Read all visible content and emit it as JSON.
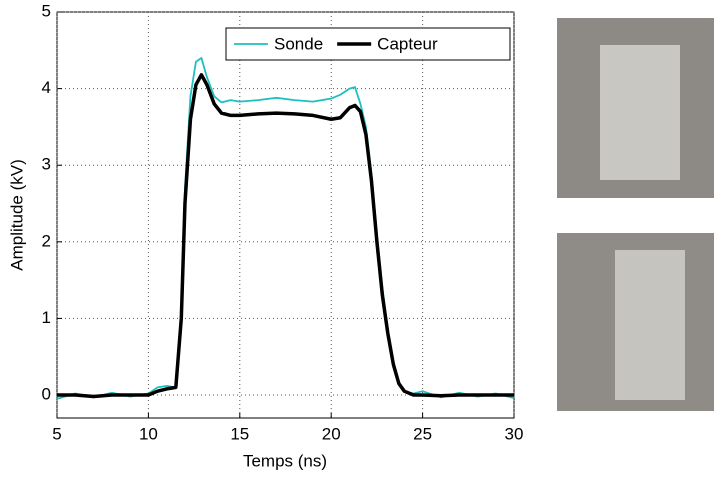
{
  "chart_data": {
    "type": "line",
    "xlabel": "Temps (ns)",
    "ylabel": "Amplitude (kV)",
    "x": [
      5,
      6,
      7,
      8,
      9,
      10,
      10.5,
      11,
      11.5,
      11.8,
      12,
      12.3,
      12.6,
      12.9,
      13.2,
      13.6,
      14,
      14.5,
      15,
      16,
      17,
      18,
      19,
      20,
      20.5,
      21,
      21.3,
      21.6,
      21.9,
      22.2,
      22.5,
      22.8,
      23.1,
      23.4,
      23.7,
      24,
      24.5,
      25,
      26,
      27,
      28,
      29,
      30
    ],
    "series": [
      {
        "name": "Sonde",
        "color": "#1fbfbf",
        "values": [
          -0.05,
          0.02,
          -0.03,
          0.03,
          -0.02,
          0.02,
          0.1,
          0.12,
          0.1,
          1.1,
          2.7,
          3.9,
          4.35,
          4.4,
          4.15,
          3.9,
          3.82,
          3.85,
          3.83,
          3.85,
          3.88,
          3.85,
          3.83,
          3.87,
          3.92,
          4.0,
          4.02,
          3.8,
          3.5,
          2.9,
          2.1,
          1.4,
          0.85,
          0.45,
          0.15,
          0.05,
          0.02,
          0.05,
          -0.03,
          0.03,
          -0.02,
          0.02,
          -0.04
        ]
      },
      {
        "name": "Capteur",
        "color": "#000000",
        "values": [
          0,
          0,
          -0.02,
          0,
          0,
          0,
          0.05,
          0.08,
          0.1,
          1.0,
          2.5,
          3.6,
          4.05,
          4.18,
          4.05,
          3.8,
          3.68,
          3.65,
          3.65,
          3.67,
          3.68,
          3.67,
          3.65,
          3.6,
          3.62,
          3.75,
          3.78,
          3.7,
          3.4,
          2.8,
          2.0,
          1.3,
          0.8,
          0.4,
          0.15,
          0.05,
          0,
          0,
          -0.01,
          0,
          0,
          0,
          0
        ]
      }
    ],
    "xlim": [
      5,
      30
    ],
    "xticks": [
      5,
      10,
      15,
      20,
      25,
      30
    ],
    "ylim": [
      -0.3,
      5
    ],
    "yticks": [
      0,
      1,
      2,
      3,
      4,
      5
    ],
    "grid": true,
    "legend": "upper-right"
  }
}
